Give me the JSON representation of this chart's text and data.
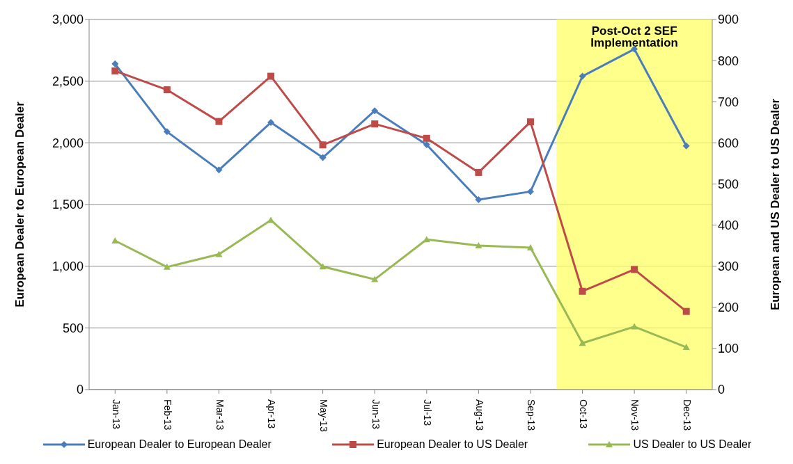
{
  "chart_data": {
    "type": "line",
    "categories": [
      "Jan-13",
      "Feb-13",
      "Mar-13",
      "Apr-13",
      "May-13",
      "Jun-13",
      "Jul-13",
      "Aug-13",
      "Sep-13",
      "Oct-13",
      "Nov-13",
      "Dec-13"
    ],
    "series": [
      {
        "name": "European Dealer to European Dealer",
        "color": "#4a7ebb",
        "marker": "diamond",
        "values": [
          2640,
          2090,
          1780,
          2165,
          1880,
          2260,
          1985,
          1540,
          1605,
          2540,
          2760,
          1975
        ]
      },
      {
        "name": "European Dealer to US Dealer",
        "color": "#be4b48",
        "marker": "square",
        "axis": "y2",
        "values": [
          775,
          729,
          652,
          762,
          595,
          646,
          611,
          528,
          651,
          239,
          292,
          190
        ]
      },
      {
        "name": "US Dealer to US Dealer",
        "color": "#98b954",
        "marker": "triangle",
        "axis": "y2",
        "values": [
          362,
          298,
          329,
          412,
          299,
          268,
          365,
          350,
          345,
          113,
          153,
          103
        ]
      }
    ],
    "ylabel": "European Dealer to European Dealer",
    "y2label": "European and US Dealer to US Dealer",
    "ylim": [
      0,
      3000
    ],
    "yticks": [
      {
        "value": 0,
        "label": "0"
      },
      {
        "value": 500,
        "label": "500"
      },
      {
        "value": 1000,
        "label": "1,000"
      },
      {
        "value": 1500,
        "label": "1,500"
      },
      {
        "value": 2000,
        "label": "2,000"
      },
      {
        "value": 2500,
        "label": "2,500"
      },
      {
        "value": 3000,
        "label": "3,000"
      }
    ],
    "y2lim": [
      0,
      900
    ],
    "y2ticks": [
      0,
      100,
      200,
      300,
      400,
      500,
      600,
      700,
      800,
      900
    ],
    "bands": [
      {
        "axis": "x",
        "from": "Oct-13",
        "to": "Dec-13",
        "label": "Post-Oct 2 SEF Implementation",
        "color": "#ffff66"
      }
    ],
    "grid": "y",
    "legend": "bottom",
    "line_style": "solid"
  }
}
